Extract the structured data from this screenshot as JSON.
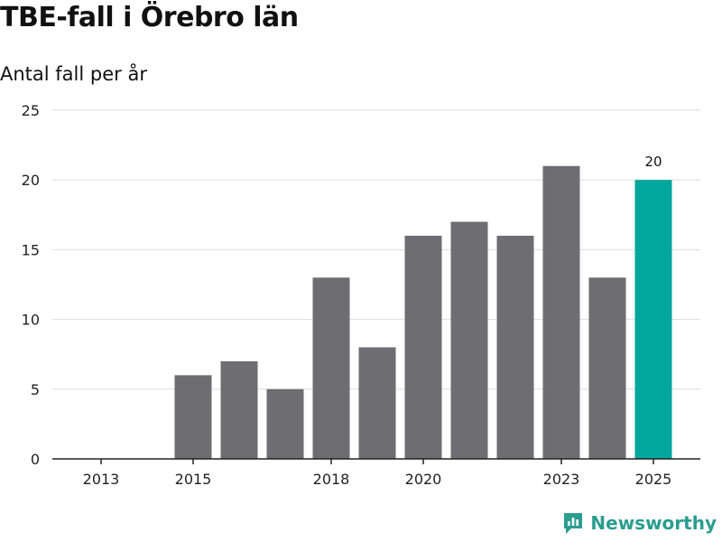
{
  "title": "TBE-fall i Örebro län",
  "subtitle": "Antal fall per år",
  "brand": {
    "name": "Newsworthy",
    "icon": "newsworthy-logo-icon"
  },
  "colors": {
    "bar": "#6e6d72",
    "highlight": "#00a79d",
    "grid": "#dddddd",
    "axis": "#222222"
  },
  "chart_data": {
    "type": "bar",
    "title": "TBE-fall i Örebro län",
    "subtitle": "Antal fall per år",
    "xlabel": "",
    "ylabel": "",
    "categories": [
      "2013",
      "2014",
      "2015",
      "2016",
      "2017",
      "2018",
      "2019",
      "2020",
      "2021",
      "2022",
      "2023",
      "2024",
      "2025"
    ],
    "values": [
      0,
      0,
      6,
      7,
      5,
      13,
      8,
      16,
      17,
      16,
      21,
      13,
      20
    ],
    "highlight_index": 12,
    "x_tick_labels": [
      "2013",
      "2015",
      "2018",
      "2020",
      "2023",
      "2025"
    ],
    "y_ticks": [
      0,
      5,
      10,
      15,
      20,
      25
    ],
    "ylim": [
      0,
      25
    ],
    "data_labels": [
      {
        "category": "2025",
        "text": "20"
      }
    ],
    "grid": true,
    "legend": "none"
  }
}
